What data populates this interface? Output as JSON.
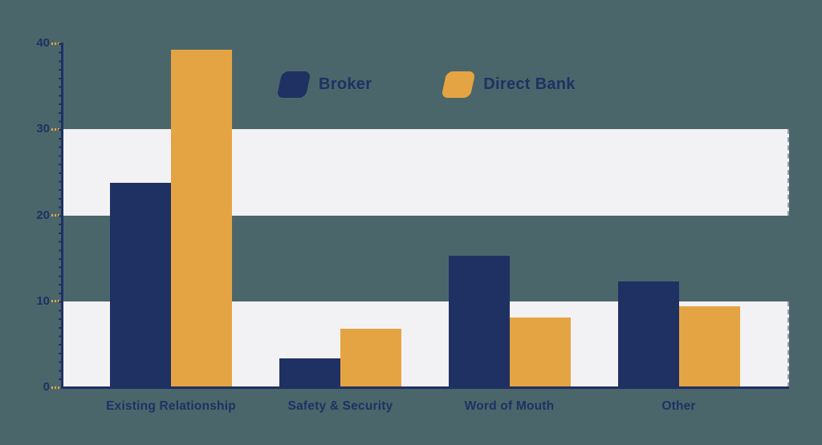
{
  "colors": {
    "background": "#4b666b",
    "band": "#f2f2f4",
    "navy": "#1f3163",
    "orange": "#e5a443",
    "axis": "#1f3163",
    "tick": "#e5a443",
    "label_text": "#1f3163"
  },
  "chart_data": {
    "type": "bar",
    "title": "",
    "categories": [
      "Existing Relationship",
      "Safety & Security",
      "Word of Mouth",
      "Other"
    ],
    "series": [
      {
        "name": "Broker",
        "color": "#1f3163",
        "values": [
          23.8,
          3.4,
          15.3,
          12.3
        ]
      },
      {
        "name": "Direct Bank",
        "color": "#e5a443",
        "values": [
          39.3,
          6.8,
          8.1,
          9.4
        ]
      }
    ],
    "xlabel": "",
    "ylabel": "",
    "ylim": [
      0,
      40
    ],
    "yticks": [
      0,
      10,
      20,
      30,
      40
    ],
    "grid": "off",
    "legend_position": "top-center",
    "background_bands": [
      [
        0,
        10
      ],
      [
        20,
        30
      ]
    ],
    "band_style": "alternating horizontal stripes, light on teal"
  }
}
